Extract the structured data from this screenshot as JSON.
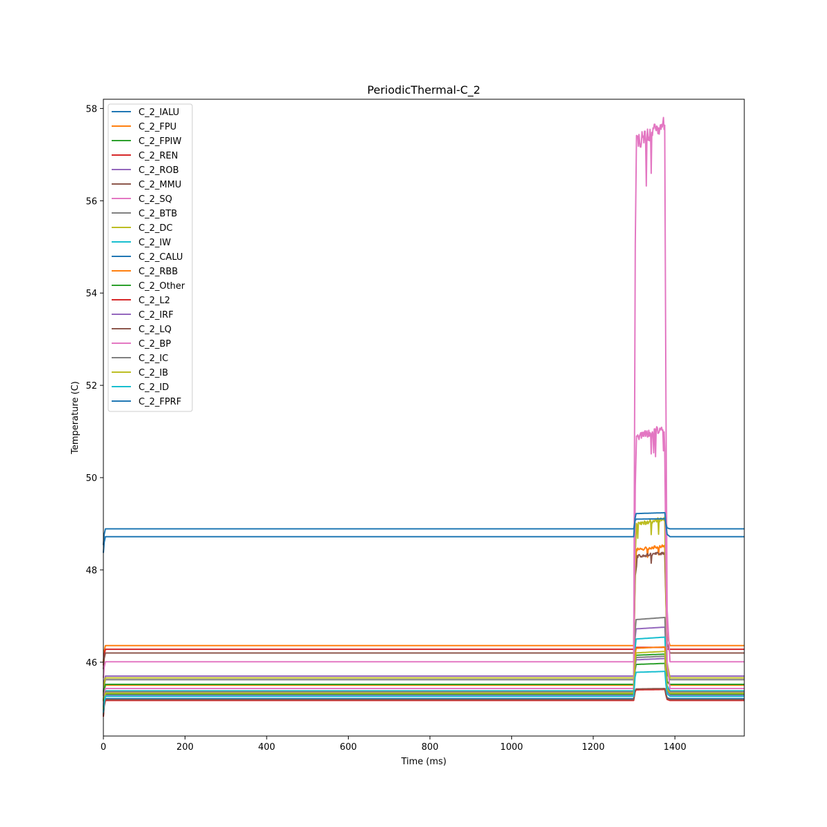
{
  "chart_data": {
    "type": "line",
    "title": "PeriodicThermal-C_2",
    "xlabel": "Time (ms)",
    "ylabel": "Temperature (C)",
    "xlim": [
      0,
      1570
    ],
    "ylim": [
      44.4,
      58.2
    ],
    "xticks": [
      0,
      200,
      400,
      600,
      800,
      1000,
      1200,
      1400
    ],
    "yticks": [
      46,
      48,
      50,
      52,
      54,
      56,
      58
    ],
    "grid": false,
    "legend_position": "upper-left",
    "pulse": {
      "start": 1300,
      "end": 1378
    },
    "series": [
      {
        "name": "C_2_IALU",
        "color": "#1f77b4",
        "base": 45.21,
        "peak": 45.41
      },
      {
        "name": "C_2_FPU",
        "color": "#ff7f0e",
        "base": 46.36,
        "peak": 48.45,
        "noisy": true
      },
      {
        "name": "C_2_FPIW",
        "color": "#2ca02c",
        "base": 45.31,
        "peak": 45.95
      },
      {
        "name": "C_2_REN",
        "color": "#d62728",
        "base": 46.28,
        "peak": 46.32
      },
      {
        "name": "C_2_ROB",
        "color": "#9467bd",
        "base": 45.7,
        "peak": 46.72
      },
      {
        "name": "C_2_MMU",
        "color": "#8c564b",
        "base": 46.2,
        "peak": 48.3,
        "noisy": true
      },
      {
        "name": "C_2_SQ",
        "color": "#e377c2",
        "base": 46.01,
        "peak": 57.3,
        "noisy": true
      },
      {
        "name": "C_2_BTB",
        "color": "#7f7f7f",
        "base": 45.62,
        "peak": 46.92
      },
      {
        "name": "C_2_DC",
        "color": "#bcbd22",
        "base": 45.66,
        "peak": 49.0,
        "noisy": true
      },
      {
        "name": "C_2_IW",
        "color": "#17becf",
        "base": 45.38,
        "peak": 46.5
      },
      {
        "name": "C_2_CALU",
        "color": "#1f77b4",
        "base": 48.89,
        "peak": 49.1
      },
      {
        "name": "C_2_RBB",
        "color": "#ff7f0e",
        "base": 45.5,
        "peak": 46.3
      },
      {
        "name": "C_2_Other",
        "color": "#2ca02c",
        "base": 45.52,
        "peak": 46.15
      },
      {
        "name": "C_2_L2",
        "color": "#d62728",
        "base": 45.17,
        "peak": 45.4
      },
      {
        "name": "C_2_IRF",
        "color": "#9467bd",
        "base": 45.28,
        "peak": 46.05
      },
      {
        "name": "C_2_LQ",
        "color": "#8c564b",
        "base": 45.19,
        "peak": 45.42
      },
      {
        "name": "C_2_BP",
        "color": "#e377c2",
        "base": 45.43,
        "peak": 50.9,
        "noisy": true
      },
      {
        "name": "C_2_IC",
        "color": "#7f7f7f",
        "base": 45.36,
        "peak": 46.1
      },
      {
        "name": "C_2_IB",
        "color": "#bcbd22",
        "base": 45.33,
        "peak": 46.2
      },
      {
        "name": "C_2_ID",
        "color": "#17becf",
        "base": 45.26,
        "peak": 45.78
      },
      {
        "name": "C_2_FPRF",
        "color": "#1f77b4",
        "base": 48.72,
        "peak": 49.22
      }
    ]
  }
}
